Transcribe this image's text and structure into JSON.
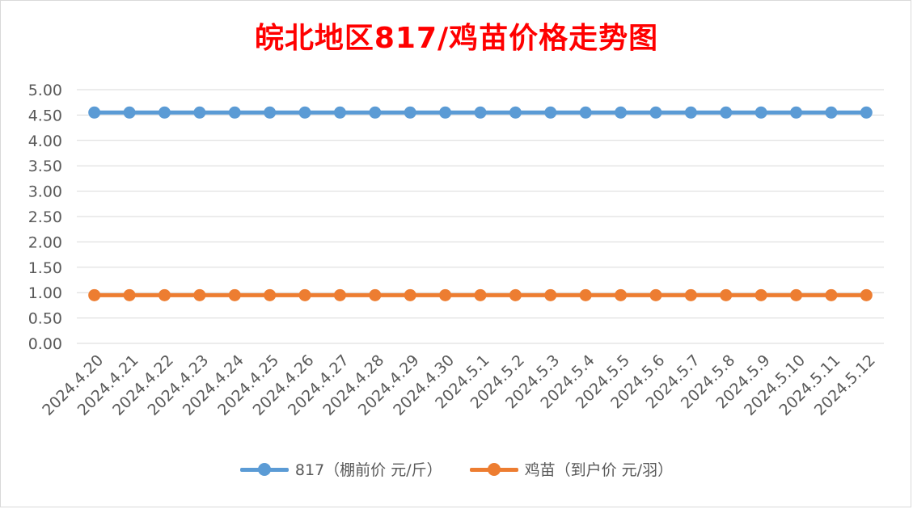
{
  "chart_data": {
    "type": "line",
    "title": "皖北地区817/鸡苗价格走势图",
    "categories": [
      "2024.4.20",
      "2024.4.21",
      "2024.4.22",
      "2024.4.23",
      "2024.4.24",
      "2024.4.25",
      "2024.4.26",
      "2024.4.27",
      "2024.4.28",
      "2024.4.29",
      "2024.4.30",
      "2024.5.1",
      "2024.5.2",
      "2024.5.3",
      "2024.5.4",
      "2024.5.5",
      "2024.5.6",
      "2024.5.7",
      "2024.5.8",
      "2024.5.9",
      "2024.5.10",
      "2024.5.11",
      "2024.5.12"
    ],
    "series": [
      {
        "name": "817（棚前价 元/斤）",
        "color": "#5b9bd5",
        "values": [
          4.55,
          4.55,
          4.55,
          4.55,
          4.55,
          4.55,
          4.55,
          4.55,
          4.55,
          4.55,
          4.55,
          4.55,
          4.55,
          4.55,
          4.55,
          4.55,
          4.55,
          4.55,
          4.55,
          4.55,
          4.55,
          4.55,
          4.55
        ]
      },
      {
        "name": "鸡苗（到户价 元/羽）",
        "color": "#ed7d31",
        "values": [
          0.95,
          0.95,
          0.95,
          0.95,
          0.95,
          0.95,
          0.95,
          0.95,
          0.95,
          0.95,
          0.95,
          0.95,
          0.95,
          0.95,
          0.95,
          0.95,
          0.95,
          0.95,
          0.95,
          0.95,
          0.95,
          0.95,
          0.95
        ]
      }
    ],
    "ylim": [
      0,
      5
    ],
    "ytick_step": 0.5,
    "ytick_labels": [
      "0.00",
      "0.50",
      "1.00",
      "1.50",
      "2.00",
      "2.50",
      "3.00",
      "3.50",
      "4.00",
      "4.50",
      "5.00"
    ],
    "xlabel": "",
    "ylabel": "",
    "grid": true,
    "legend_position": "bottom"
  }
}
